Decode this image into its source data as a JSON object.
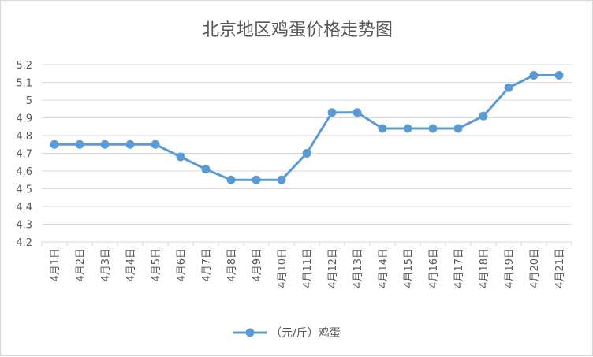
{
  "chart_data": {
    "type": "line",
    "title": "北京地区鸡蛋价格走势图",
    "xlabel": "",
    "ylabel": "",
    "categories": [
      "4月1日",
      "4月2日",
      "4月3日",
      "4月4日",
      "4月5日",
      "4月6日",
      "4月7日",
      "4月8日",
      "4月9日",
      "4月10日",
      "4月11日",
      "4月12日",
      "4月13日",
      "4月14日",
      "4月15日",
      "4月16日",
      "4月17日",
      "4月18日",
      "4月19日",
      "4月20日",
      "4月21日"
    ],
    "series": [
      {
        "name": "（元/斤）鸡蛋",
        "values": [
          4.75,
          4.75,
          4.75,
          4.75,
          4.75,
          4.68,
          4.61,
          4.55,
          4.55,
          4.55,
          4.7,
          4.93,
          4.93,
          4.84,
          4.84,
          4.84,
          4.84,
          4.91,
          5.07,
          5.14,
          5.14
        ]
      }
    ],
    "ylim": [
      4.2,
      5.2
    ],
    "yticks": [
      "4.2",
      "4.3",
      "4.4",
      "4.5",
      "4.6",
      "4.7",
      "4.8",
      "4.9",
      "5",
      "5.1",
      "5.2"
    ],
    "grid": true,
    "legend": "bottom",
    "colors": {
      "series": "#5b9bd5",
      "grid": "#d9d9d9",
      "text": "#595959"
    }
  }
}
